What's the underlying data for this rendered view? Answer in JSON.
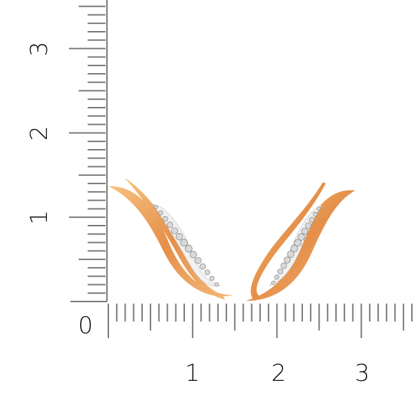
{
  "ruler": {
    "unit_labels_horizontal": [
      "0",
      "1",
      "2",
      "3"
    ],
    "unit_labels_vertical": [
      "1",
      "2",
      "3"
    ]
  },
  "product": {
    "description_icon": "climber-earrings-pair",
    "metal_color": "#e9a35a",
    "stone_color": "#d9d9d9"
  }
}
